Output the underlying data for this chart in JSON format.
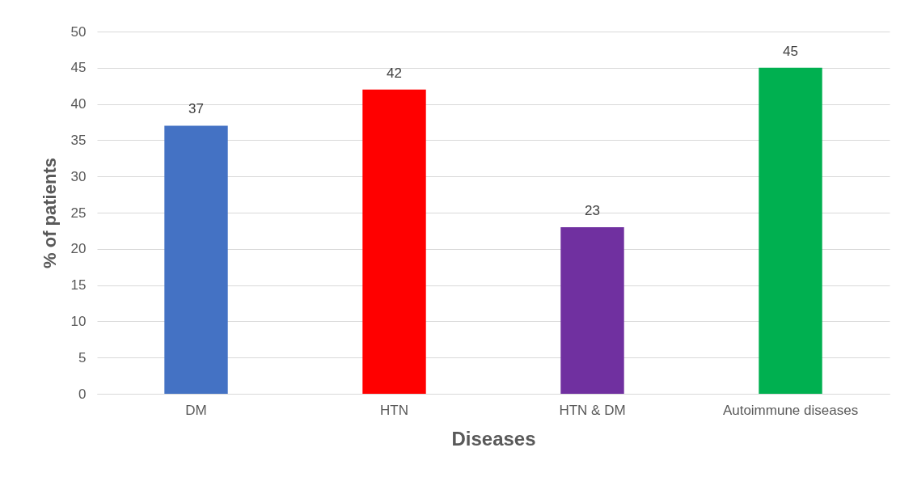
{
  "chart_data": {
    "type": "bar",
    "xlabel": "Diseases",
    "ylabel": "% of patients",
    "categories": [
      "DM",
      "HTN",
      "HTN & DM",
      "Autoimmune diseases"
    ],
    "values": [
      37,
      42,
      23,
      45
    ],
    "colors": [
      "#4472c4",
      "#ff0000",
      "#7030a0",
      "#00b050"
    ],
    "ylim": [
      0,
      50
    ],
    "yticks": [
      0,
      5,
      10,
      15,
      20,
      25,
      30,
      35,
      40,
      45,
      50
    ],
    "grid": "y",
    "data_labels": true
  }
}
